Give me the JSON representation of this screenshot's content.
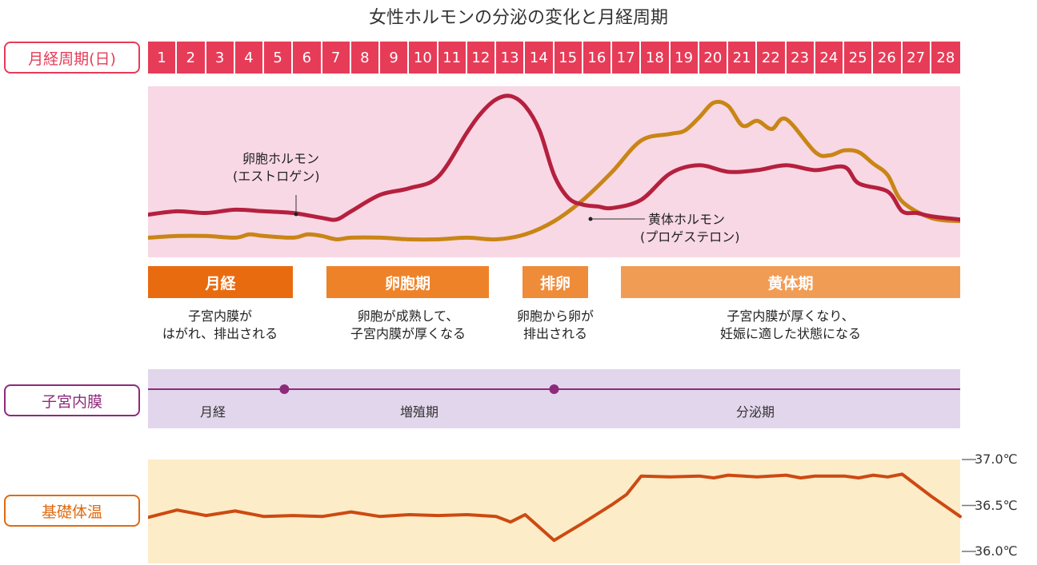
{
  "title": "女性ホルモンの分泌の変化と月経周期",
  "side_labels": {
    "cycle": "月経周期(日)",
    "endometrium": "子宮内膜",
    "temperature": "基礎体温"
  },
  "colors": {
    "day_strip": "#e63c58",
    "hormone_bg": "#f8d8e4",
    "estrogen": "#b5203f",
    "progesterone": "#c98516",
    "endometrium_band": "#e2d6ec",
    "endometrium_line": "#8e2a7b",
    "temperature_bg": "#fdecc8",
    "temperature_line": "#cc4a12",
    "phase_menses": "#e96b10",
    "phase_follicular": "#ee8228",
    "phase_ovulation": "#ee8c3a",
    "phase_luteal": "#f19c55"
  },
  "phases": [
    {
      "label": "月経",
      "desc1": "子宮内膜が",
      "desc2": "はがれ、排出される"
    },
    {
      "label": "卵胞期",
      "desc1": "卵胞が成熟して、",
      "desc2": "子宮内膜が厚くなる"
    },
    {
      "label": "排卵",
      "desc1": "卵胞から卵が",
      "desc2": "排出される"
    },
    {
      "label": "黄体期",
      "desc1": "子宮内膜が厚くなり、",
      "desc2": "妊娠に適した状態になる"
    }
  ],
  "endometrium": {
    "stages": [
      "月経",
      "増殖期",
      "分泌期"
    ],
    "markers_day": [
      5.2,
      14.5
    ]
  },
  "annotations": {
    "estrogen_line1": "卵胞ホルモン",
    "estrogen_line2": "(エストロゲン)",
    "progesterone_line1": "黄体ホルモン",
    "progesterone_line2": "(プロゲステロン)"
  },
  "chart_data": [
    {
      "type": "line",
      "x_label": "月経周期(日)",
      "days": [
        "1",
        "2",
        "3",
        "4",
        "5",
        "6",
        "7",
        "8",
        "9",
        "10",
        "11",
        "12",
        "13",
        "14",
        "15",
        "16",
        "17",
        "18",
        "19",
        "20",
        "21",
        "22",
        "23",
        "24",
        "25",
        "26",
        "27",
        "28"
      ],
      "xlim": [
        0.5,
        28.5
      ],
      "ylim": [
        0,
        100
      ],
      "grid": false,
      "series": [
        {
          "name": "卵胞ホルモン(エストロゲン)",
          "x": [
            0.5,
            1.5,
            2.5,
            3.5,
            4.5,
            5.5,
            6.5,
            7.0,
            7.5,
            8.5,
            9.5,
            10.5,
            11.5,
            12.0,
            12.5,
            13.0,
            13.5,
            14.0,
            14.5,
            15.0,
            15.5,
            16.0,
            16.5,
            17.5,
            18.5,
            19.5,
            20.5,
            21.5,
            22.5,
            23.5,
            24.5,
            25.0,
            26.0,
            26.5,
            27.0,
            27.5,
            28.5
          ],
          "values": [
            24,
            26,
            25,
            27,
            26,
            25,
            22,
            21,
            26,
            36,
            40,
            47,
            74,
            86,
            94,
            96,
            90,
            75,
            48,
            34,
            30,
            29,
            28,
            33,
            49,
            54,
            50,
            51,
            54,
            51,
            53,
            43,
            38,
            26,
            25,
            23,
            21
          ]
        },
        {
          "name": "黄体ホルモン(プロゲステロン)",
          "x": [
            0.5,
            1.5,
            2.5,
            3.5,
            4.0,
            4.5,
            5.5,
            6.0,
            6.5,
            7.0,
            7.5,
            8.5,
            9.5,
            10.5,
            11.5,
            12.5,
            13.5,
            14.5,
            15.5,
            16.5,
            17.5,
            18.5,
            19.0,
            19.5,
            20.0,
            20.5,
            21.0,
            21.5,
            22.0,
            22.5,
            23.5,
            24.0,
            24.5,
            25.0,
            25.5,
            26.0,
            26.5,
            27.5,
            28.5
          ],
          "values": [
            10,
            11,
            11,
            10,
            12,
            11,
            10,
            12,
            11,
            9,
            10,
            10,
            9,
            9,
            10,
            9,
            12,
            20,
            33,
            50,
            69,
            73,
            75,
            83,
            92,
            90,
            78,
            81,
            76,
            82,
            62,
            60,
            63,
            62,
            55,
            48,
            32,
            22,
            20
          ]
        }
      ]
    },
    {
      "type": "line",
      "y_label": "基礎体温",
      "y_ticks": [
        "37.0℃",
        "36.5℃",
        "36.0℃"
      ],
      "ylim": [
        36.0,
        37.0
      ],
      "xlim": [
        0.5,
        28.5
      ],
      "series": [
        {
          "name": "基礎体温",
          "x": [
            0.5,
            1.5,
            2.5,
            3.5,
            4.5,
            5.5,
            6.5,
            7.5,
            8.5,
            9.5,
            10.5,
            11.5,
            12.5,
            13.0,
            13.5,
            14.5,
            15.5,
            16.5,
            17.0,
            17.5,
            18.5,
            19.5,
            20.0,
            20.5,
            21.5,
            22.5,
            23.0,
            23.5,
            24.5,
            25.0,
            25.5,
            26.0,
            26.5,
            27.5,
            28.5
          ],
          "values": [
            36.37,
            36.45,
            36.39,
            36.44,
            36.38,
            36.39,
            36.38,
            36.43,
            36.38,
            36.4,
            36.39,
            36.4,
            36.38,
            36.32,
            36.4,
            36.12,
            36.31,
            36.51,
            36.62,
            36.82,
            36.81,
            36.82,
            36.8,
            36.83,
            36.81,
            36.83,
            36.8,
            36.82,
            36.82,
            36.8,
            36.83,
            36.81,
            36.84,
            36.6,
            36.38
          ]
        }
      ]
    }
  ]
}
